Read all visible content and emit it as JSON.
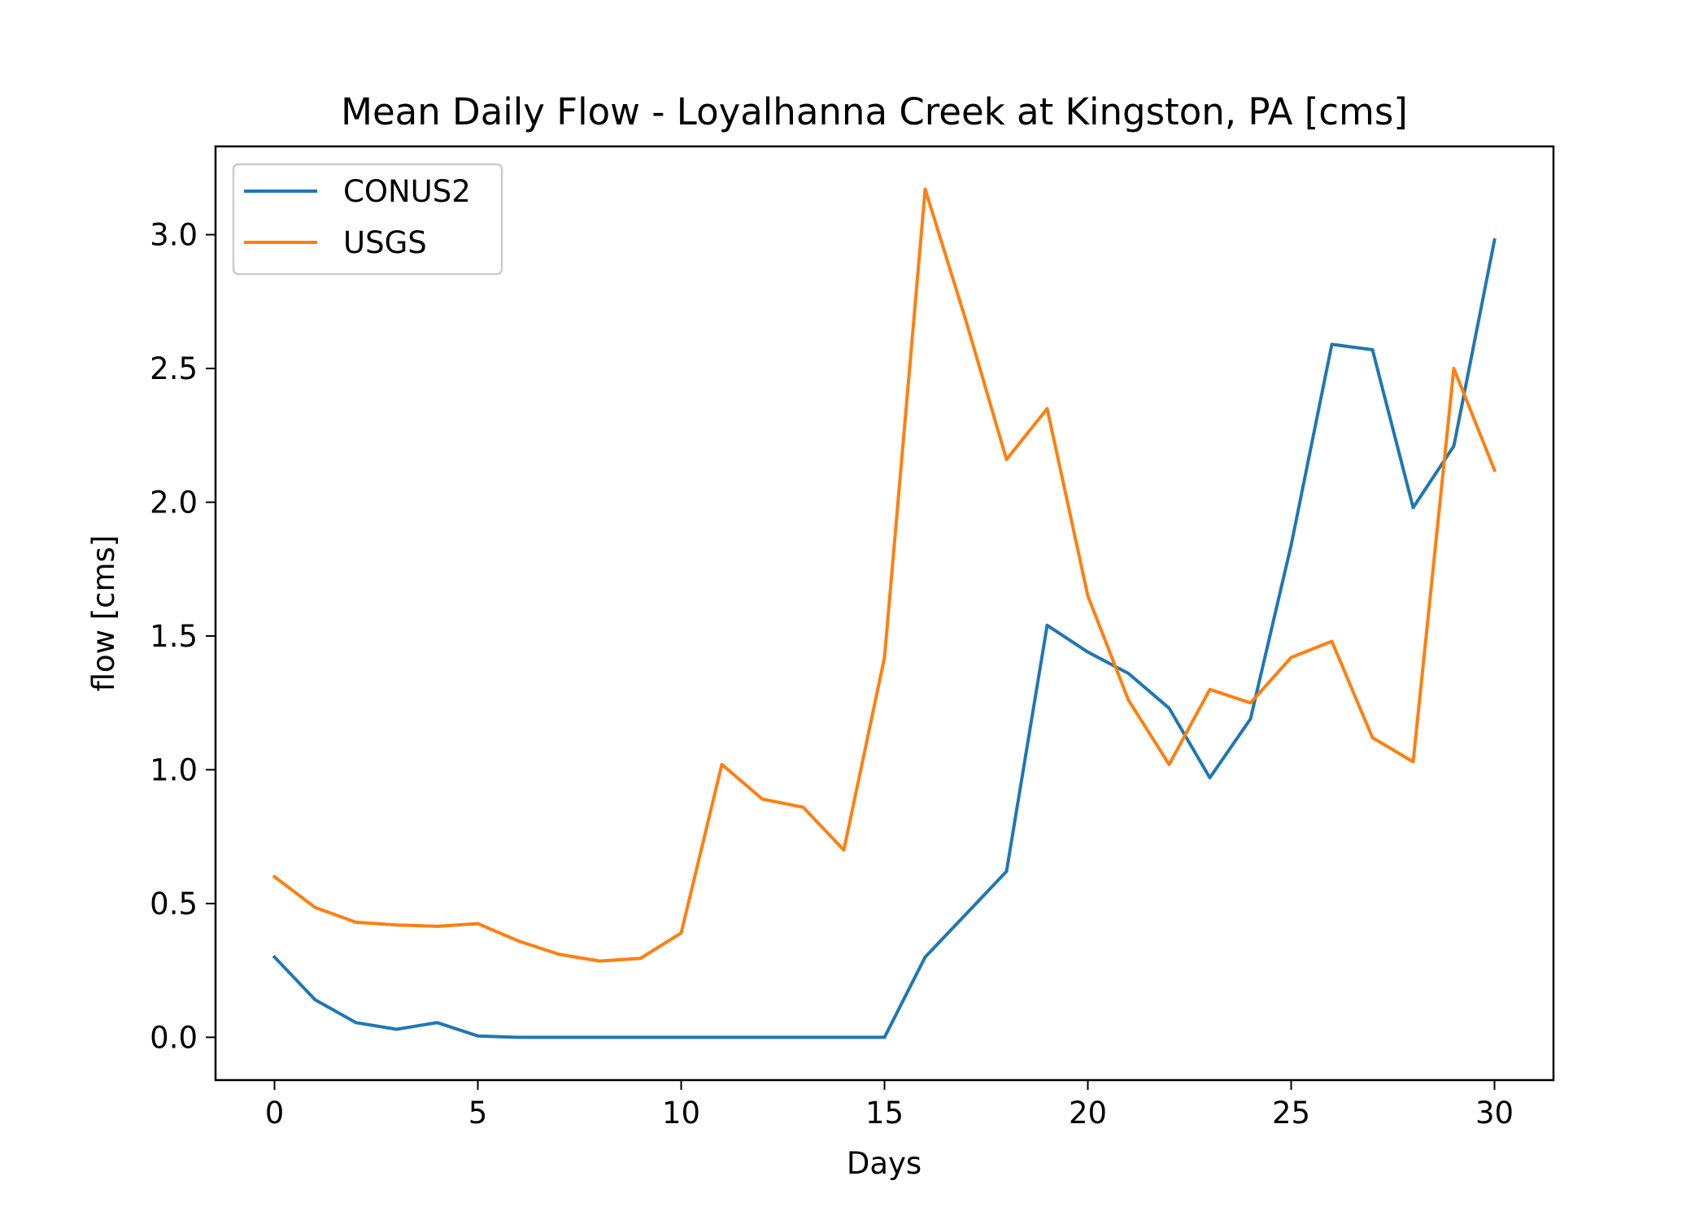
{
  "chart_data": {
    "type": "line",
    "title": "Mean Daily Flow - Loyalhanna Creek at Kingston, PA [cms]",
    "xlabel": "Days",
    "ylabel": "flow [cms]",
    "xlim": [
      -1.45,
      31.45
    ],
    "ylim": [
      -0.16,
      3.33
    ],
    "xticks": [
      0,
      5,
      10,
      15,
      20,
      25,
      30
    ],
    "xtick_labels": [
      "0",
      "5",
      "10",
      "15",
      "20",
      "25",
      "30"
    ],
    "yticks": [
      0.0,
      0.5,
      1.0,
      1.5,
      2.0,
      2.5,
      3.0
    ],
    "ytick_labels": [
      "0.0",
      "0.5",
      "1.0",
      "1.5",
      "2.0",
      "2.5",
      "3.0"
    ],
    "grid": false,
    "legend_position": "upper-left",
    "x": [
      0,
      1,
      2,
      3,
      4,
      5,
      6,
      7,
      8,
      9,
      10,
      11,
      12,
      13,
      14,
      15,
      16,
      17,
      18,
      19,
      20,
      21,
      22,
      23,
      24,
      25,
      26,
      27,
      28,
      29,
      30
    ],
    "series": [
      {
        "name": "CONUS2",
        "color": "#1f77b4",
        "values": [
          0.3,
          0.14,
          0.055,
          0.03,
          0.055,
          0.005,
          0.0,
          0.0,
          0.0,
          0.0,
          0.0,
          0.0,
          0.0,
          0.0,
          0.0,
          0.0,
          0.3,
          0.46,
          0.62,
          1.54,
          1.44,
          1.36,
          1.23,
          0.97,
          1.19,
          1.84,
          2.59,
          2.57,
          1.98,
          2.21,
          2.98
        ]
      },
      {
        "name": "USGS",
        "color": "#ff7f0e",
        "values": [
          0.6,
          0.485,
          0.43,
          0.42,
          0.415,
          0.425,
          0.36,
          0.31,
          0.285,
          0.295,
          0.39,
          1.02,
          0.89,
          0.86,
          0.7,
          1.42,
          3.17,
          2.68,
          2.16,
          2.35,
          1.65,
          1.26,
          1.02,
          1.3,
          1.25,
          1.42,
          1.48,
          1.12,
          1.03,
          2.5,
          2.12
        ]
      }
    ]
  }
}
